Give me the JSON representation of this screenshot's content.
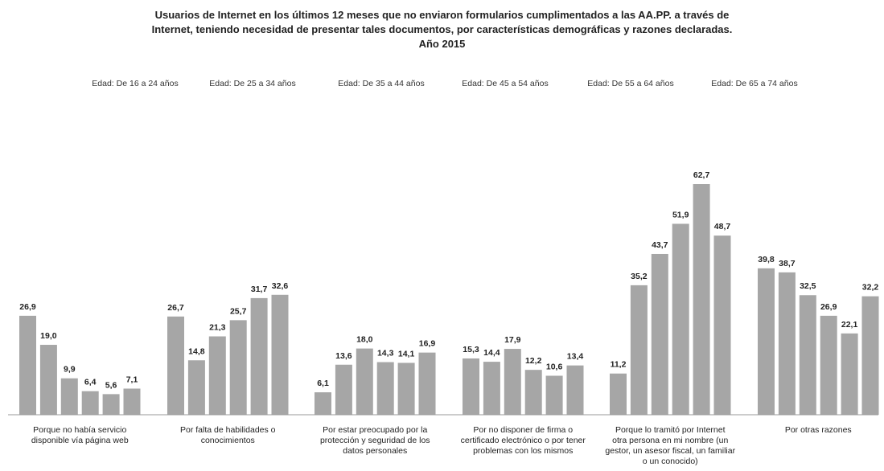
{
  "chart_data": {
    "type": "bar",
    "title_lines": [
      "Usuarios de Internet en los últimos 12 meses que no enviaron formularios cumplimentados a las AA.PP. a través de",
      "Internet, teniendo necesidad de presentar tales documentos, por características demográficas y razones declaradas.",
      "Año 2015"
    ],
    "categories": [
      [
        "Porque no había servicio",
        "disponible vía página web"
      ],
      [
        "Por falta de habilidades o",
        "conocimientos"
      ],
      [
        "Por estar preocupado por la",
        "protección y seguridad de los",
        "datos personales"
      ],
      [
        "Por no disponer de firma o",
        "certificado electrónico o por tener",
        "problemas con los mismos"
      ],
      [
        "Porque lo tramitó por Internet",
        "otra persona en mi nombre (un",
        "gestor, un asesor fiscal, un familiar",
        "o un conocido)"
      ],
      [
        "Por otras razones"
      ]
    ],
    "series": [
      {
        "name": "Edad: De 16 a 24 años",
        "values": [
          26.9,
          26.7,
          6.1,
          15.3,
          11.2,
          39.8
        ]
      },
      {
        "name": "Edad: De 25 a 34 años",
        "values": [
          19.0,
          14.8,
          13.6,
          14.4,
          35.2,
          38.7
        ]
      },
      {
        "name": "Edad: De 35 a 44 años",
        "values": [
          9.9,
          21.3,
          18.0,
          17.9,
          43.7,
          32.5
        ]
      },
      {
        "name": "Edad: De 45 a 54 años",
        "values": [
          6.4,
          25.7,
          14.3,
          12.2,
          51.9,
          26.9
        ]
      },
      {
        "name": "Edad: De 55 a 64 años",
        "values": [
          5.6,
          31.7,
          14.1,
          10.6,
          62.7,
          22.1
        ]
      },
      {
        "name": "Edad: De 65 a 74 años",
        "values": [
          7.1,
          32.6,
          16.9,
          13.4,
          48.7,
          32.2
        ]
      }
    ],
    "value_labels": [
      [
        "26,9",
        "26,7",
        "6,1",
        "15,3",
        "11,2",
        "39,8"
      ],
      [
        "19,0",
        "14,8",
        "13,6",
        "14,4",
        "35,2",
        "38,7"
      ],
      [
        "9,9",
        "21,3",
        "18,0",
        "17,9",
        "43,7",
        "32,5"
      ],
      [
        "6,4",
        "25,7",
        "14,3",
        "12,2",
        "51,9",
        "26,9"
      ],
      [
        "5,6",
        "31,7",
        "14,1",
        "10,6",
        "62,7",
        "22,1"
      ],
      [
        "7,1",
        "32,6",
        "16,9",
        "13,4",
        "48,7",
        "32,2"
      ]
    ],
    "ylim": [
      0,
      70
    ],
    "bar_color": "#a6a6a6",
    "legend_position": "top",
    "grid": false,
    "xlabel": "",
    "ylabel": ""
  }
}
